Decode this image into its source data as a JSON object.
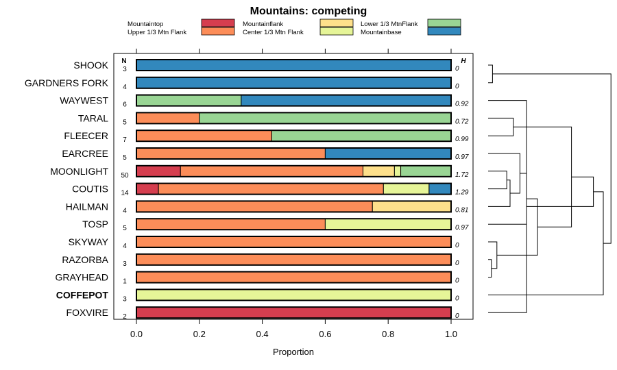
{
  "chart_data": {
    "type": "bar",
    "orientation": "horizontal",
    "stacked": true,
    "title": "Mountains: competing",
    "xlabel": "Proportion",
    "ylabel": "",
    "xlim": [
      0,
      1
    ],
    "x_ticks": [
      "0.0",
      "0.2",
      "0.4",
      "0.6",
      "0.8",
      "1.0"
    ],
    "n_header": "N",
    "h_header": "H",
    "legend": [
      {
        "name": "Mountaintop",
        "color": "#D53E4F"
      },
      {
        "name": "Upper 1/3 Mtn Flank",
        "color": "#FC8D59"
      },
      {
        "name": "Mountainflank",
        "color": "#FEE08B"
      },
      {
        "name": "Center 1/3 Mtn Flank",
        "color": "#E6F598"
      },
      {
        "name": "Lower 1/3 MtnFlank",
        "color": "#99D594"
      },
      {
        "name": "Mountainbase",
        "color": "#3288BD"
      }
    ],
    "categories": [
      "SHOOK",
      "GARDNERS FORK",
      "WAYWEST",
      "TARAL",
      "FLEECER",
      "EARCREE",
      "MOONLIGHT",
      "COUTIS",
      "HAILMAN",
      "TOSP",
      "SKYWAY",
      "RAZORBA",
      "GRAYHEAD",
      "COFFEPOT",
      "FOXVIRE"
    ],
    "bold_categories": [
      "COFFEPOT"
    ],
    "n": [
      "3",
      "4",
      "6",
      "5",
      "7",
      "5",
      "50",
      "14",
      "4",
      "5",
      "4",
      "3",
      "1",
      "3",
      "2"
    ],
    "h": [
      "0",
      "0",
      "0.92",
      "0.72",
      "0.99",
      "0.97",
      "1.72",
      "1.29",
      "0.81",
      "0.97",
      "0",
      "0",
      "0",
      "0",
      "0"
    ],
    "series": [
      {
        "name": "Mountaintop",
        "values": [
          0,
          0,
          0,
          0,
          0,
          0,
          0.14,
          0.07,
          0,
          0,
          0,
          0,
          0,
          0,
          1
        ]
      },
      {
        "name": "Upper 1/3 Mtn Flank",
        "values": [
          0,
          0,
          0,
          0.2,
          0.43,
          0.6,
          0.58,
          0.715,
          0.75,
          0.6,
          1,
          1,
          1,
          0,
          0
        ]
      },
      {
        "name": "Mountainflank",
        "values": [
          0,
          0,
          0,
          0,
          0,
          0,
          0.1,
          0,
          0.25,
          0,
          0,
          0,
          0,
          0,
          0
        ]
      },
      {
        "name": "Center 1/3 Mtn Flank",
        "values": [
          0,
          0,
          0,
          0,
          0,
          0,
          0.02,
          0.145,
          0,
          0.4,
          0,
          0,
          0,
          1,
          0
        ]
      },
      {
        "name": "Lower 1/3 MtnFlank",
        "values": [
          0,
          0,
          0.333,
          0.8,
          0.57,
          0,
          0.16,
          0,
          0,
          0,
          0,
          0,
          0,
          0,
          0
        ]
      },
      {
        "name": "Mountainbase",
        "values": [
          1,
          1,
          0.667,
          0,
          0,
          0.4,
          0,
          0.07,
          0,
          0,
          0,
          0,
          0,
          0,
          0
        ]
      }
    ],
    "dendrogram": {
      "order": [
        "SHOOK",
        "GARDNERS FORK",
        "WAYWEST",
        "TARAL",
        "FLEECER",
        "EARCREE",
        "MOONLIGHT",
        "COUTIS",
        "HAILMAN",
        "TOSP",
        "SKYWAY",
        "RAZORBA",
        "GRAYHEAD",
        "COFFEPOT",
        "FOXVIRE"
      ],
      "merges": [
        {
          "a": 0,
          "b": 1,
          "height": 0.04
        },
        {
          "a": 2,
          "b": 14,
          "height": 0.35
        },
        {
          "a": 3,
          "b": 4,
          "height": 0.23
        },
        {
          "a": 6,
          "b": 7,
          "height": 0.17
        },
        {
          "a": 18,
          "b": 8,
          "height": 0.2
        },
        {
          "a": 19,
          "b": 5,
          "height": 0.29
        },
        {
          "a": 20,
          "b": 9,
          "height": 0.35
        },
        {
          "a": 11,
          "b": 12,
          "height": 0.03
        },
        {
          "a": 10,
          "b": 22,
          "height": 0.08
        },
        {
          "a": 21,
          "b": 23,
          "height": 0.45
        },
        {
          "a": 17,
          "b": 24,
          "height": 0.76
        },
        {
          "a": 16,
          "b": 25,
          "height": 0.96
        },
        {
          "a": 26,
          "b": 13,
          "height": 1.05
        },
        {
          "a": 27,
          "b": 15,
          "height": 1.12
        }
      ]
    }
  }
}
